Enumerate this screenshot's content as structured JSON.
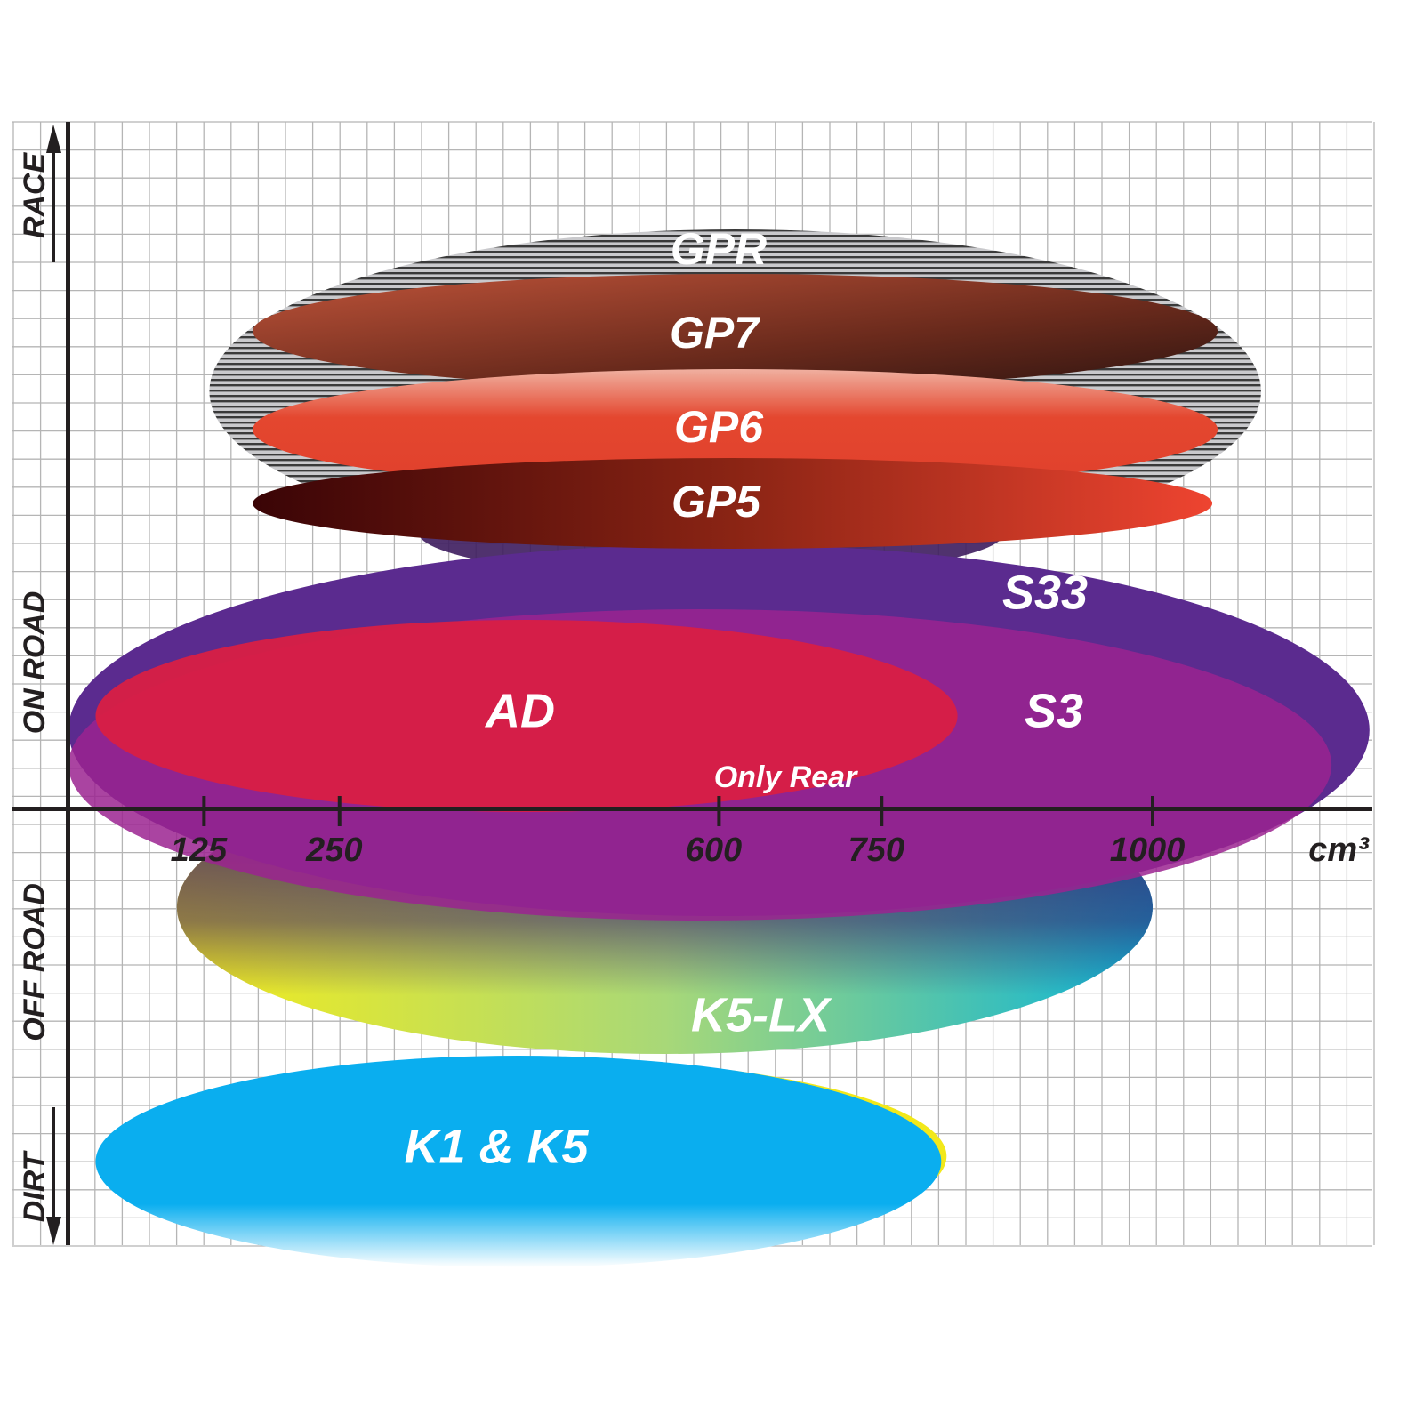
{
  "chart_data": {
    "type": "positioning",
    "x_unit": "cm³",
    "x_ticks": [
      125,
      250,
      600,
      750,
      1000
    ],
    "y_categories": [
      "RACE",
      "ON ROAD",
      "OFF ROAD",
      "DIRT"
    ],
    "grid": true,
    "products": [
      {
        "name": "GPR",
        "x_range": [
          130,
          1100
        ],
        "segment": "RACE / ON ROAD",
        "color": "#9a9a9a"
      },
      {
        "name": "GP7",
        "x_range": [
          170,
          1060
        ],
        "segment": "RACE",
        "color": "#8a3a26"
      },
      {
        "name": "GP6",
        "x_range": [
          170,
          1060
        ],
        "segment": "RACE / ON ROAD",
        "color": "#e0432f"
      },
      {
        "name": "GP5",
        "x_range": [
          170,
          1055
        ],
        "segment": "ON ROAD",
        "color": "#a52a1c"
      },
      {
        "name": "S33",
        "x_range": [
          0,
          1200
        ],
        "segment": "ON ROAD",
        "color": "#5b2b8f"
      },
      {
        "name": "S3",
        "x_range": [
          0,
          1165
        ],
        "segment": "ON ROAD / OFF ROAD",
        "color": "#9b2390"
      },
      {
        "name": "AD",
        "x_range": [
          25,
          820
        ],
        "segment": "ON ROAD",
        "color": "#d91f45"
      },
      {
        "name": "K5-LX",
        "x_range": [
          100,
          1000
        ],
        "segment": "OFF ROAD",
        "color": "#15b8d4"
      },
      {
        "name": "K1 & K5",
        "x_range": [
          25,
          805
        ],
        "segment": "DIRT",
        "color": "#0aaeef"
      }
    ],
    "annotations": [
      "Only Rear"
    ]
  }
}
